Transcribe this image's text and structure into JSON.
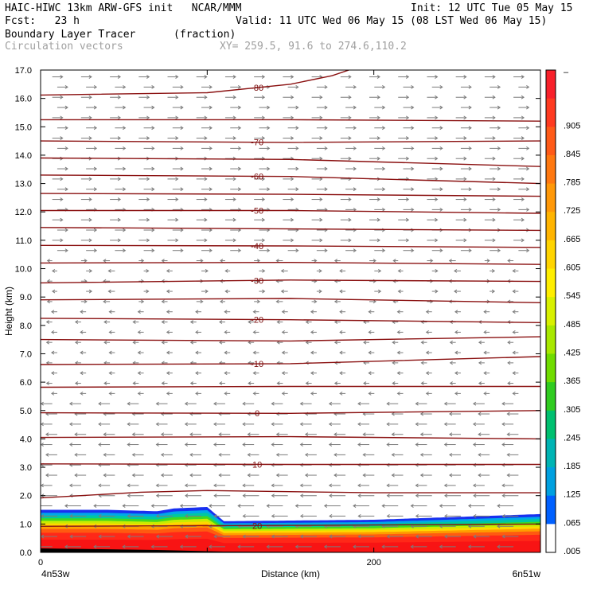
{
  "header": {
    "line1_left": "HAIC-HIWC 13km ARW-GFS init   NCAR/MMM",
    "line1_right": "Init: 12 UTC Tue 05 May 15",
    "line2_left": "Fcst:   23 h",
    "line2_right": "Valid: 11 UTC Wed 06 May 15 (08 LST Wed 06 May 15)",
    "field_name": "Boundary Layer Tracer",
    "field_units": "(fraction)",
    "vector_label": "Circulation vectors",
    "xy_label": "XY= 259.5, 91.6 to 274.6,110.2"
  },
  "chart_data": {
    "type": "heatmap",
    "ylabel": "Height (km)",
    "xlabel": "Distance (km)",
    "ylim": [
      0,
      17
    ],
    "xlim": [
      0,
      300
    ],
    "y_ticks": [
      "0.0",
      "1.0",
      "2.0",
      "3.0",
      "4.0",
      "5.0",
      "6.0",
      "7.0",
      "8.0",
      "9.0",
      "10.0",
      "11.0",
      "12.0",
      "13.0",
      "14.0",
      "15.0",
      "16.0",
      "17.0"
    ],
    "x_ticks": [
      {
        "value": 0,
        "label": "0"
      },
      {
        "value": 200,
        "label": "200"
      }
    ],
    "x_endpoints": {
      "left": "4n53w",
      "right": "6n51w"
    },
    "colorbar": {
      "labels": [
        "–",
        ".905",
        ".845",
        ".785",
        ".725",
        ".665",
        ".605",
        ".545",
        ".485",
        ".425",
        ".365",
        ".305",
        ".245",
        ".185",
        ".125",
        ".065",
        ".005"
      ],
      "colors": [
        "#f8202a",
        "#ff3a20",
        "#ff5a18",
        "#ff7810",
        "#ff9808",
        "#ffb400",
        "#ffd400",
        "#ffee00",
        "#d8f000",
        "#a8e800",
        "#70dc00",
        "#30cc20",
        "#00c070",
        "#00b4b4",
        "#00a0e0",
        "#0060ff",
        "#ffffff"
      ]
    },
    "tracer_top_km": [
      {
        "x": 0,
        "y": 1.5
      },
      {
        "x": 40,
        "y": 1.5
      },
      {
        "x": 70,
        "y": 1.45
      },
      {
        "x": 80,
        "y": 1.55
      },
      {
        "x": 100,
        "y": 1.6
      },
      {
        "x": 110,
        "y": 1.1
      },
      {
        "x": 200,
        "y": 1.15
      },
      {
        "x": 300,
        "y": 1.35
      }
    ],
    "isotherms": [
      {
        "label": "20",
        "points": [
          {
            "x": 0,
            "y": 0.92
          },
          {
            "x": 150,
            "y": 0.95
          },
          {
            "x": 300,
            "y": 1.0
          }
        ]
      },
      {
        "label": "",
        "points": [
          {
            "x": 0,
            "y": 1.92
          },
          {
            "x": 60,
            "y": 2.12
          },
          {
            "x": 100,
            "y": 2.18
          },
          {
            "x": 200,
            "y": 2.1
          },
          {
            "x": 300,
            "y": 2.1
          }
        ]
      },
      {
        "label": "10",
        "points": [
          {
            "x": 0,
            "y": 3.12
          },
          {
            "x": 150,
            "y": 3.1
          },
          {
            "x": 300,
            "y": 3.1
          }
        ]
      },
      {
        "label": "",
        "points": [
          {
            "x": 0,
            "y": 4.05
          },
          {
            "x": 150,
            "y": 4.08
          },
          {
            "x": 300,
            "y": 4.0
          }
        ]
      },
      {
        "label": "0",
        "points": [
          {
            "x": 0,
            "y": 4.92
          },
          {
            "x": 150,
            "y": 4.9
          },
          {
            "x": 300,
            "y": 5.0
          }
        ]
      },
      {
        "label": "",
        "points": [
          {
            "x": 0,
            "y": 5.82
          },
          {
            "x": 150,
            "y": 5.85
          },
          {
            "x": 300,
            "y": 5.85
          }
        ]
      },
      {
        "label": "-10",
        "points": [
          {
            "x": 0,
            "y": 6.62
          },
          {
            "x": 150,
            "y": 6.65
          },
          {
            "x": 300,
            "y": 6.9
          }
        ]
      },
      {
        "label": "",
        "points": [
          {
            "x": 0,
            "y": 7.5
          },
          {
            "x": 150,
            "y": 7.45
          },
          {
            "x": 300,
            "y": 7.6
          }
        ]
      },
      {
        "label": "-20",
        "points": [
          {
            "x": 0,
            "y": 8.25
          },
          {
            "x": 150,
            "y": 8.2
          },
          {
            "x": 300,
            "y": 8.1
          }
        ]
      },
      {
        "label": "",
        "points": [
          {
            "x": 0,
            "y": 8.9
          },
          {
            "x": 150,
            "y": 8.95
          },
          {
            "x": 300,
            "y": 8.8
          }
        ]
      },
      {
        "label": "-30",
        "points": [
          {
            "x": 0,
            "y": 9.5
          },
          {
            "x": 150,
            "y": 9.6
          },
          {
            "x": 300,
            "y": 9.55
          }
        ]
      },
      {
        "label": "",
        "points": [
          {
            "x": 0,
            "y": 10.2
          },
          {
            "x": 150,
            "y": 10.22
          },
          {
            "x": 300,
            "y": 10.15
          }
        ]
      },
      {
        "label": "-40",
        "points": [
          {
            "x": 0,
            "y": 10.82
          },
          {
            "x": 150,
            "y": 10.8
          },
          {
            "x": 300,
            "y": 10.75
          }
        ]
      },
      {
        "label": "",
        "points": [
          {
            "x": 0,
            "y": 11.45
          },
          {
            "x": 150,
            "y": 11.4
          },
          {
            "x": 300,
            "y": 11.35
          }
        ]
      },
      {
        "label": "-50",
        "points": [
          {
            "x": 0,
            "y": 12.05
          },
          {
            "x": 150,
            "y": 12.05
          },
          {
            "x": 300,
            "y": 11.95
          }
        ]
      },
      {
        "label": "",
        "points": [
          {
            "x": 0,
            "y": 12.65
          },
          {
            "x": 150,
            "y": 12.62
          },
          {
            "x": 300,
            "y": 12.55
          }
        ]
      },
      {
        "label": "-60",
        "points": [
          {
            "x": 0,
            "y": 13.3
          },
          {
            "x": 150,
            "y": 13.25
          },
          {
            "x": 300,
            "y": 13.0
          }
        ]
      },
      {
        "label": "",
        "points": [
          {
            "x": 0,
            "y": 13.9
          },
          {
            "x": 150,
            "y": 13.85
          },
          {
            "x": 300,
            "y": 13.6
          }
        ]
      },
      {
        "label": "-70",
        "points": [
          {
            "x": 0,
            "y": 14.5
          },
          {
            "x": 150,
            "y": 14.45
          },
          {
            "x": 300,
            "y": 14.5
          }
        ]
      },
      {
        "label": "",
        "points": [
          {
            "x": 0,
            "y": 15.25
          },
          {
            "x": 150,
            "y": 15.25
          },
          {
            "x": 300,
            "y": 15.2
          }
        ]
      },
      {
        "label": "-80",
        "points": [
          {
            "x": 0,
            "y": 16.12
          },
          {
            "x": 100,
            "y": 16.2
          },
          {
            "x": 150,
            "y": 16.5
          },
          {
            "x": 175,
            "y": 16.8
          },
          {
            "x": 185,
            "y": 17.0
          }
        ]
      }
    ]
  }
}
